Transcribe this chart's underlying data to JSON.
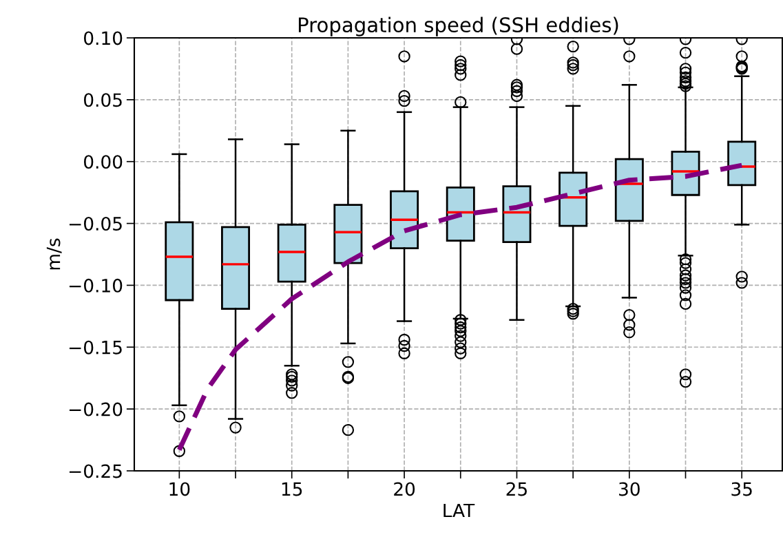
{
  "chart_data": {
    "type": "box",
    "title": "Propagation speed (SSH eddies)",
    "xlabel": "LAT",
    "ylabel": "m/s",
    "xlim": [
      8,
      36.8
    ],
    "ylim": [
      -0.25,
      0.1
    ],
    "xticks": [
      10,
      {
        "value": 12.5,
        "label": null
      },
      15,
      {
        "value": 17.5,
        "label": null
      },
      20,
      {
        "value": 22.5,
        "label": null
      },
      25,
      {
        "value": 27.5,
        "label": null
      },
      30,
      {
        "value": 32.5,
        "label": null
      },
      35
    ],
    "yticks": [
      {
        "value": -0.25,
        "label": "−0.25"
      },
      {
        "value": -0.2,
        "label": "−0.20"
      },
      {
        "value": -0.15,
        "label": "−0.15"
      },
      {
        "value": -0.1,
        "label": "−0.10"
      },
      {
        "value": -0.05,
        "label": "−0.05"
      },
      {
        "value": 0,
        "label": "0.00"
      },
      {
        "value": 0.05,
        "label": "0.05"
      },
      {
        "value": 0.1,
        "label": "0.10"
      }
    ],
    "grid": true,
    "series": [
      {
        "color": "#add8e6",
        "x": [
          10,
          12.5,
          15,
          17.5,
          20,
          22.5,
          25,
          27.5,
          30,
          32.5,
          35
        ],
        "boxes": [
          {
            "low": -0.197,
            "q1": -0.112,
            "median": -0.077,
            "q3": -0.049,
            "high": 0.006,
            "outliers": [
              -0.206,
              -0.234
            ]
          },
          {
            "low": -0.208,
            "q1": -0.119,
            "median": -0.083,
            "q3": -0.053,
            "high": 0.018,
            "outliers": [
              -0.215
            ]
          },
          {
            "low": -0.165,
            "q1": -0.097,
            "median": -0.073,
            "q3": -0.051,
            "high": 0.014,
            "outliers": [
              -0.172,
              -0.174,
              -0.177,
              -0.181,
              -0.187
            ]
          },
          {
            "low": -0.147,
            "q1": -0.082,
            "median": -0.057,
            "q3": -0.035,
            "high": 0.025,
            "outliers": [
              -0.162,
              -0.174,
              -0.175,
              -0.217
            ]
          },
          {
            "low": -0.129,
            "q1": -0.07,
            "median": -0.047,
            "q3": -0.024,
            "high": 0.04,
            "outliers": [
              0.085,
              0.053,
              0.049,
              -0.144,
              -0.149,
              -0.155
            ]
          },
          {
            "low": -0.127,
            "q1": -0.064,
            "median": -0.041,
            "q3": -0.021,
            "high": 0.044,
            "outliers": [
              0.081,
              0.078,
              0.075,
              0.07,
              0.048,
              -0.128,
              -0.131,
              -0.134,
              -0.137,
              -0.141,
              -0.146,
              -0.151,
              -0.155
            ]
          },
          {
            "low": -0.128,
            "q1": -0.065,
            "median": -0.041,
            "q3": -0.02,
            "high": 0.044,
            "outliers": [
              0.099,
              0.091,
              0.062,
              0.06,
              0.057,
              0.053
            ]
          },
          {
            "low": -0.117,
            "q1": -0.052,
            "median": -0.029,
            "q3": -0.009,
            "high": 0.045,
            "outliers": [
              0.093,
              0.08,
              0.078,
              0.075,
              -0.119,
              -0.121,
              -0.123
            ]
          },
          {
            "low": -0.11,
            "q1": -0.048,
            "median": -0.018,
            "q3": 0.002,
            "high": 0.062,
            "outliers": [
              0.099,
              0.085,
              -0.124,
              -0.132,
              -0.138
            ]
          },
          {
            "low": -0.076,
            "q1": -0.027,
            "median": -0.008,
            "q3": 0.008,
            "high": 0.06,
            "outliers": [
              0.099,
              0.088,
              0.075,
              0.072,
              0.068,
              0.065,
              0.063,
              0.061,
              -0.079,
              -0.082,
              -0.087,
              -0.092,
              -0.095,
              -0.098,
              -0.102,
              -0.108,
              -0.115,
              -0.172,
              -0.178
            ]
          },
          {
            "low": -0.051,
            "q1": -0.019,
            "median": -0.004,
            "q3": 0.016,
            "high": 0.069,
            "outliers": [
              0.099,
              0.085,
              0.077,
              0.076,
              0.075,
              -0.093,
              -0.098
            ]
          }
        ]
      },
      {
        "type": "line",
        "color": "#800080",
        "line_style": "dashed",
        "x": [
          10,
          11.25,
          12.5,
          15,
          17.5,
          20,
          22.5,
          25,
          27.5,
          30,
          32.5,
          35
        ],
        "values": [
          -0.233,
          -0.184,
          -0.152,
          -0.111,
          -0.081,
          -0.056,
          -0.043,
          -0.037,
          -0.026,
          -0.015,
          -0.012,
          -0.003
        ]
      }
    ]
  }
}
